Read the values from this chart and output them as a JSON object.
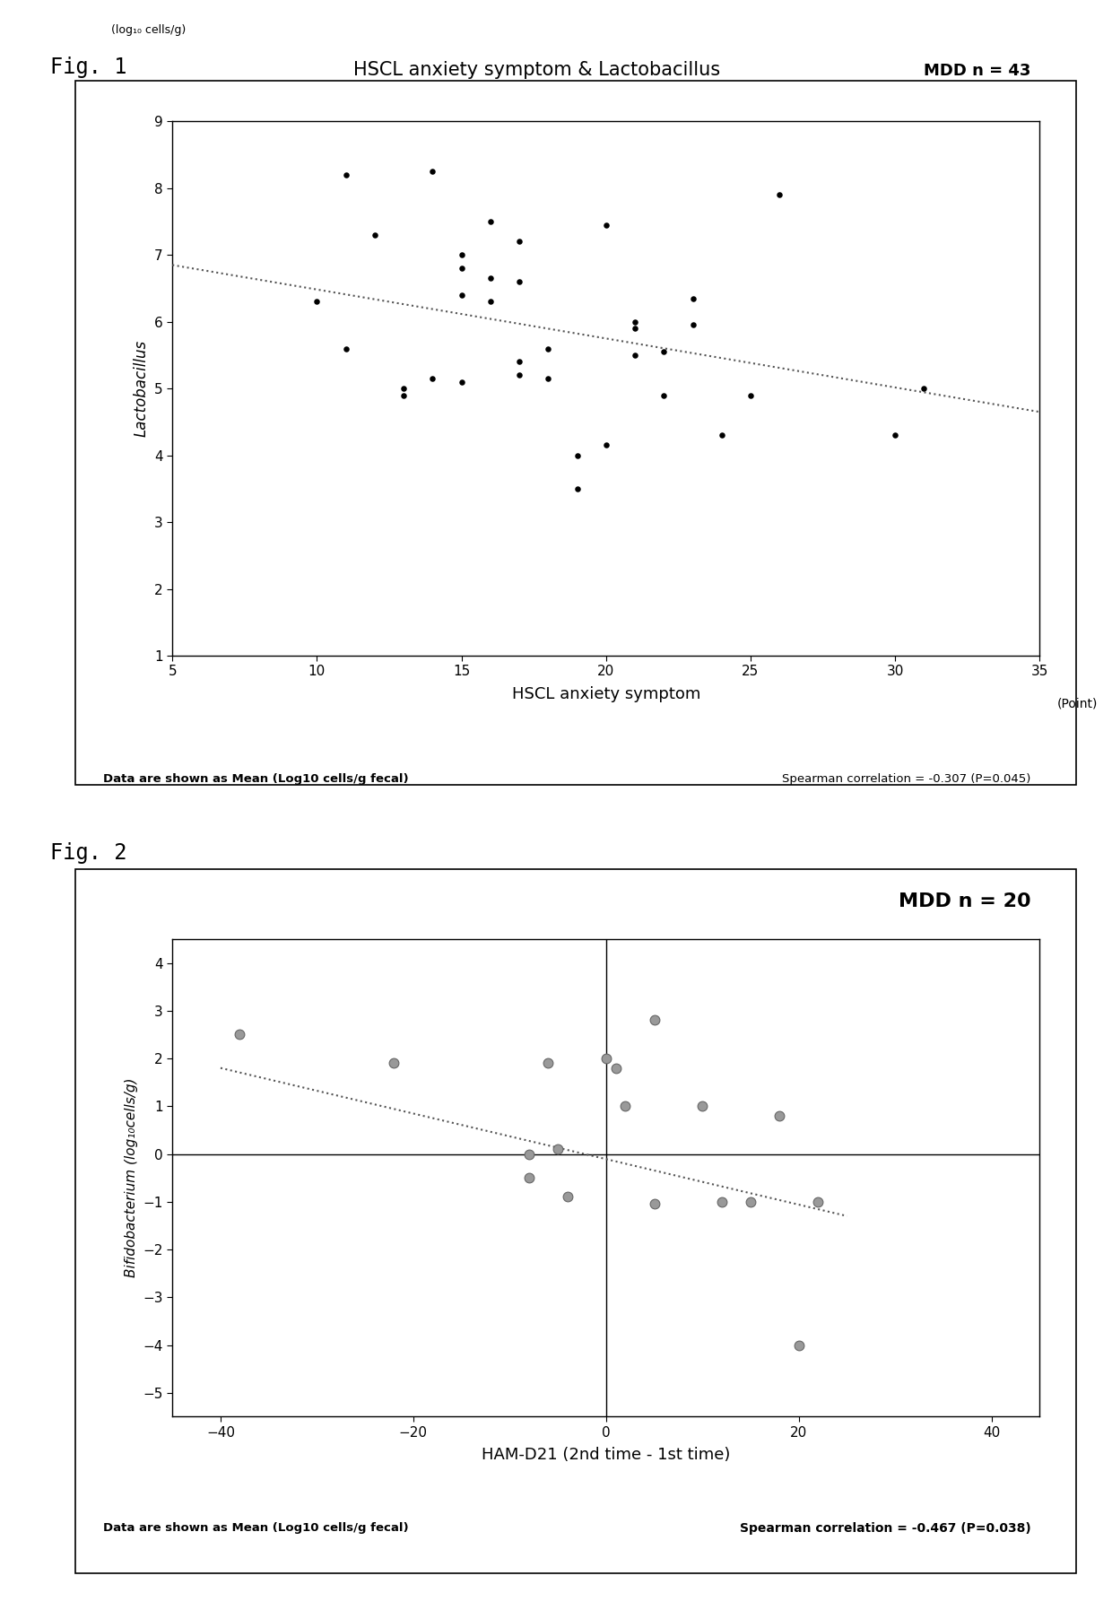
{
  "fig1": {
    "title": "HSCL anxiety symptom & Lactobacillus",
    "mdd_label": "MDD n = 43",
    "xlabel": "HSCL anxiety symptom",
    "ylabel": "Lactobacillus",
    "ylabel_unit": "(log₁₀ cells/g)",
    "xlabel_unit": "(Point)",
    "footnote_left": "Data are shown as Mean (Log10 cells/g fecal)",
    "footnote_right": "Spearman correlation = -0.307 (P=0.045)",
    "xlim": [
      5,
      35
    ],
    "ylim": [
      1,
      9
    ],
    "xticks": [
      5,
      10,
      15,
      20,
      25,
      30,
      35
    ],
    "yticks": [
      1,
      2,
      3,
      4,
      5,
      6,
      7,
      8,
      9
    ],
    "scatter_x": [
      10,
      11,
      11,
      12,
      13,
      13,
      14,
      14,
      15,
      15,
      15,
      15,
      16,
      16,
      16,
      17,
      17,
      17,
      17,
      18,
      18,
      19,
      19,
      20,
      20,
      21,
      21,
      21,
      22,
      22,
      23,
      23,
      24,
      25,
      26,
      30,
      31
    ],
    "scatter_y": [
      6.3,
      8.2,
      5.6,
      7.3,
      5.0,
      4.9,
      5.15,
      8.25,
      6.4,
      6.8,
      7.0,
      5.1,
      6.3,
      7.5,
      6.65,
      7.2,
      6.6,
      5.4,
      5.2,
      5.6,
      5.15,
      4.0,
      3.5,
      7.45,
      4.15,
      6.0,
      5.9,
      5.5,
      5.55,
      4.9,
      5.95,
      6.35,
      4.3,
      4.9,
      7.9,
      4.3,
      5.0
    ],
    "trendline_x": [
      5,
      35
    ],
    "trendline_y": [
      6.85,
      4.65
    ],
    "scatter_color": "#000000",
    "trendline_color": "#555555"
  },
  "fig2": {
    "title": "MDD n = 20",
    "xlabel": "HAM-D21 (2nd time - 1st time)",
    "ylabel": "Bifidobacterium (log₁₀cells/g)",
    "footnote_left": "Data are shown as Mean (Log10 cells/g fecal)",
    "footnote_right": "Spearman correlation = -0.467 (P=0.038)",
    "xlim": [
      -45,
      45
    ],
    "ylim": [
      -5.5,
      4.5
    ],
    "xticks": [
      -40,
      -20,
      0,
      20,
      40
    ],
    "yticks": [
      -5,
      -4,
      -3,
      -2,
      -1,
      0,
      1,
      2,
      3,
      4
    ],
    "scatter_x": [
      -38,
      -22,
      -8,
      -8,
      -6,
      -5,
      -4,
      0,
      1,
      2,
      5,
      5,
      10,
      12,
      15,
      18,
      20,
      22
    ],
    "scatter_y": [
      2.5,
      1.9,
      -0.5,
      0.0,
      1.9,
      0.1,
      -0.9,
      2.0,
      1.8,
      1.0,
      -1.05,
      2.8,
      1.0,
      -1.0,
      -1.0,
      0.8,
      -4.0,
      -1.0
    ],
    "trendline_x": [
      -40,
      25
    ],
    "trendline_y": [
      1.8,
      -1.3
    ],
    "scatter_color": "#999999",
    "scatter_edge": "#666666",
    "trendline_color": "#555555",
    "vline_x": 0,
    "hline_y": 0
  },
  "background_color": "#ffffff"
}
